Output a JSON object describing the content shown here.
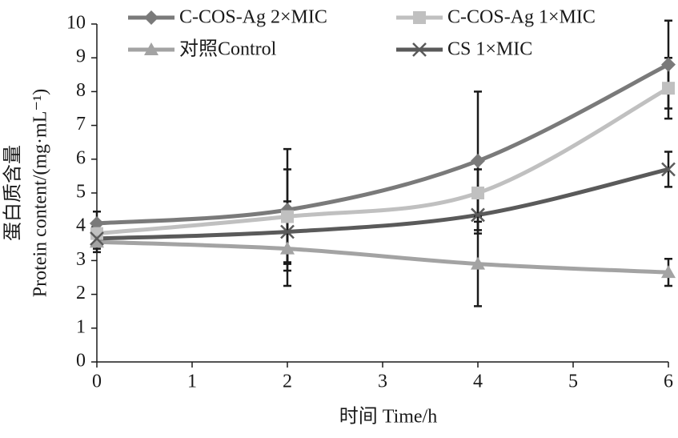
{
  "chart_data": {
    "type": "line",
    "x_label": "时间  Time/h",
    "y_label_lines": [
      "蛋白质含量",
      "Protein content/(mg·mL⁻¹)"
    ],
    "x": [
      0,
      2,
      4,
      6
    ],
    "xlim": [
      0,
      6
    ],
    "xticks": [
      0,
      1,
      2,
      3,
      4,
      5,
      6
    ],
    "ylim": [
      0,
      10
    ],
    "yticks": [
      0,
      1,
      2,
      3,
      4,
      5,
      6,
      7,
      8,
      9,
      10
    ],
    "grid": false,
    "legend": "top",
    "smooth": true,
    "error_color": "#1a1a1a",
    "series": [
      {
        "name": "C-COS-Ag 2×MIC",
        "color": "#7a7a7a",
        "marker": "diamond",
        "values": [
          4.1,
          4.5,
          5.95,
          8.8
        ],
        "errors": [
          0.35,
          1.8,
          2.05,
          1.3
        ]
      },
      {
        "name": "C-COS-Ag 1×MIC",
        "color": "#c0c0c0",
        "marker": "square",
        "values": [
          3.8,
          4.3,
          5.0,
          8.1
        ],
        "errors": [
          0.3,
          1.4,
          0.7,
          0.9
        ]
      },
      {
        "name": "对照Control",
        "color": "#a3a3a3",
        "marker": "triangle",
        "values": [
          3.55,
          3.35,
          2.9,
          2.65
        ],
        "errors": [
          0.3,
          1.1,
          1.25,
          0.4
        ]
      },
      {
        "name": "CS 1×MIC",
        "color": "#5a5a5a",
        "marker": "x",
        "values": [
          3.65,
          3.85,
          4.35,
          5.7
        ],
        "errors": [
          0.3,
          0.9,
          0.55,
          0.52
        ]
      }
    ]
  }
}
